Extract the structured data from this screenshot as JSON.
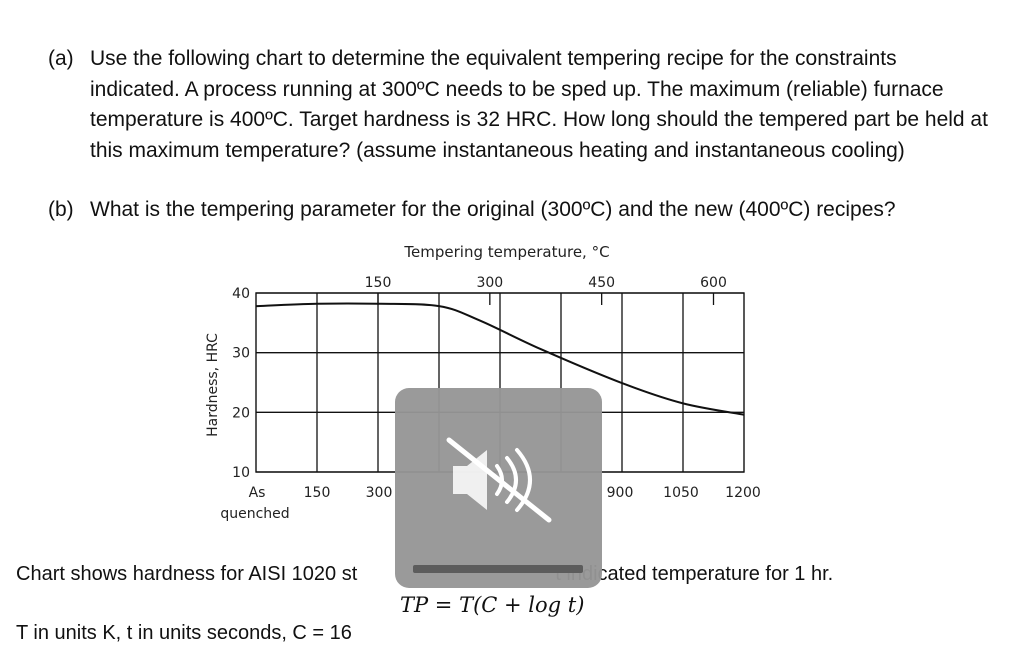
{
  "question_a": {
    "label": "(a)",
    "text": "Use the following chart to determine the equivalent tempering recipe for the constraints indicated.  A process running at 300ºC needs to be sped up.  The maximum (reliable) furnace temperature is 400ºC.  Target hardness is 32 HRC.  How long should the tempered part be held at this maximum temperature? (assume instantaneous heating and instantaneous cooling)"
  },
  "question_b": {
    "label": "(b)",
    "text": "What is the tempering parameter for the original (300ºC) and the new (400ºC) recipes?"
  },
  "chart_data": {
    "type": "line",
    "title": "Tempering temperature, °C",
    "ylabel": "Hardness, HRC",
    "xlabel": "",
    "x_tick_labels": [
      "As quenched",
      "150",
      "300",
      "900",
      "1050",
      "1200"
    ],
    "top_axis_ticks": [
      {
        "x": 300,
        "label": "150"
      },
      {
        "x": 575,
        "label": "300"
      },
      {
        "x": 850,
        "label": "450"
      },
      {
        "x": 1125,
        "label": "600"
      }
    ],
    "y_ticks": [
      10,
      20,
      30,
      40
    ],
    "ylim": [
      10,
      40
    ],
    "xlim": [
      0,
      1200
    ],
    "grid": true,
    "series": [
      {
        "values": [
          {
            "x": 0,
            "y": 37.8
          },
          {
            "x": 150,
            "y": 38.2
          },
          {
            "x": 300,
            "y": 38.2
          },
          {
            "x": 450,
            "y": 37.8
          },
          {
            "x": 550,
            "y": 35.4
          },
          {
            "x": 700,
            "y": 30.6
          },
          {
            "x": 900,
            "y": 24.9
          },
          {
            "x": 1050,
            "y": 21.5
          },
          {
            "x": 1200,
            "y": 19.6
          }
        ]
      }
    ]
  },
  "caption": {
    "left": "Chart shows hardness for AISI 1020 st",
    "right": "t indicated temperature for 1 hr."
  },
  "formula": "TP = T(C + log t)",
  "units_note": "T in units K, t in units seconds, C = 16",
  "overlay": {
    "icon": "speaker-muted-icon"
  }
}
